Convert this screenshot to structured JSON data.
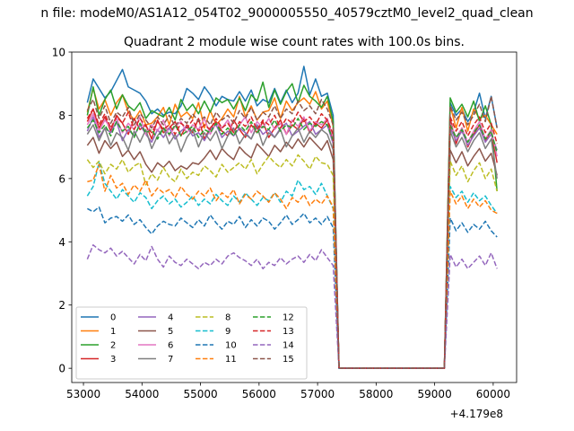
{
  "figure": {
    "suptitle": "n file: modeM0/AS1A12_054T02_9000005550_40579cztM0_level2_quad_clean",
    "title": "Quadrant 2 module wise count rates with 100.0s bins.",
    "x_offset_label": "+4.179e8"
  },
  "chart_data": {
    "type": "line",
    "title": "Quadrant 2 module wise count rates with 100.0s bins.",
    "xlabel": "",
    "ylabel": "",
    "x_offset": 417900000,
    "xlim": [
      52800,
      60400
    ],
    "ylim": [
      -0.45,
      10
    ],
    "xticks": [
      53000,
      54000,
      55000,
      56000,
      57000,
      58000,
      59000,
      60000
    ],
    "xtick_labels": [
      "53000",
      "54000",
      "55000",
      "56000",
      "57000",
      "58000",
      "59000",
      "60000"
    ],
    "yticks": [
      0,
      2,
      4,
      6,
      8,
      10
    ],
    "ytick_labels": [
      "0",
      "2",
      "4",
      "6",
      "8",
      "10"
    ],
    "grid": false,
    "legend_placement": "lower-left",
    "x": [
      53066,
      53166,
      53266,
      53366,
      53466,
      53566,
      53666,
      53766,
      53866,
      53966,
      54066,
      54166,
      54266,
      54366,
      54466,
      54566,
      54666,
      54766,
      54866,
      54966,
      55066,
      55166,
      55266,
      55366,
      55466,
      55566,
      55666,
      55766,
      55866,
      55966,
      56066,
      56166,
      56266,
      56366,
      56466,
      56566,
      56666,
      56766,
      56866,
      56966,
      57066,
      57166,
      57266,
      57366,
      59166,
      59266,
      59366,
      59466,
      59566,
      59666,
      59766,
      59866,
      59966,
      60066
    ],
    "series": [
      {
        "name": "0",
        "color": "#1f77b4",
        "dash": "solid",
        "values": [
          8.4,
          9.15,
          8.85,
          8.55,
          8.75,
          9.1,
          9.45,
          8.9,
          8.8,
          8.7,
          8.45,
          8.05,
          8.2,
          8.0,
          8.1,
          8.05,
          8.3,
          8.85,
          8.7,
          8.5,
          8.9,
          8.65,
          8.3,
          8.6,
          8.5,
          8.45,
          8.75,
          8.45,
          8.8,
          8.3,
          8.5,
          8.4,
          8.85,
          8.4,
          8.8,
          8.4,
          8.7,
          9.55,
          8.65,
          9.15,
          8.6,
          8.7,
          8.0,
          0.0,
          0.0,
          8.4,
          8.0,
          8.2,
          7.8,
          8.1,
          8.7,
          7.9,
          8.6,
          7.6
        ]
      },
      {
        "name": "1",
        "color": "#ff7f0e",
        "dash": "solid",
        "values": [
          8.1,
          8.85,
          8.2,
          8.5,
          8.0,
          8.4,
          8.65,
          8.1,
          7.85,
          8.15,
          7.7,
          7.75,
          7.95,
          8.25,
          7.7,
          8.35,
          7.95,
          8.1,
          7.9,
          8.4,
          7.6,
          8.15,
          7.7,
          7.9,
          8.2,
          7.95,
          8.6,
          7.95,
          8.3,
          7.85,
          8.1,
          8.15,
          8.55,
          7.9,
          8.45,
          8.15,
          8.4,
          8.55,
          8.35,
          8.75,
          8.2,
          8.45,
          7.65,
          0.0,
          0.0,
          8.3,
          7.6,
          8.25,
          7.5,
          8.2,
          7.9,
          8.0,
          7.7,
          7.4
        ]
      },
      {
        "name": "2",
        "color": "#2ca02c",
        "dash": "solid",
        "values": [
          8.0,
          8.9,
          8.0,
          8.5,
          8.8,
          8.2,
          8.65,
          8.3,
          8.15,
          8.4,
          7.9,
          8.15,
          8.05,
          7.95,
          8.25,
          7.85,
          8.5,
          8.15,
          8.35,
          8.05,
          8.45,
          8.1,
          8.55,
          8.4,
          8.5,
          8.2,
          8.55,
          8.15,
          8.65,
          8.45,
          9.05,
          8.25,
          8.8,
          8.35,
          8.75,
          9.0,
          8.4,
          8.95,
          8.6,
          8.45,
          8.25,
          8.6,
          7.8,
          0.0,
          0.0,
          8.55,
          8.1,
          8.35,
          7.95,
          8.45,
          7.8,
          8.3,
          7.7,
          5.6
        ]
      },
      {
        "name": "3",
        "color": "#d62728",
        "dash": "solid",
        "values": [
          7.8,
          8.2,
          7.6,
          7.95,
          7.5,
          8.0,
          7.75,
          7.4,
          7.9,
          7.55,
          7.7,
          7.25,
          7.85,
          7.45,
          7.6,
          7.8,
          7.35,
          7.7,
          7.45,
          7.9,
          7.25,
          7.6,
          7.8,
          7.5,
          7.35,
          7.85,
          7.55,
          7.3,
          7.7,
          7.45,
          7.8,
          7.3,
          7.6,
          7.85,
          7.4,
          7.7,
          7.55,
          7.9,
          7.45,
          7.75,
          7.6,
          7.85,
          7.2,
          0.0,
          0.0,
          7.9,
          7.1,
          7.6,
          7.0,
          7.4,
          7.7,
          7.2,
          7.5,
          6.5
        ]
      },
      {
        "name": "4",
        "color": "#9467bd",
        "dash": "solid",
        "values": [
          7.5,
          7.95,
          7.3,
          7.6,
          7.45,
          7.8,
          7.2,
          7.55,
          7.35,
          7.7,
          7.4,
          7.15,
          7.55,
          7.3,
          7.6,
          7.25,
          7.5,
          7.65,
          7.35,
          7.45,
          7.2,
          7.55,
          7.7,
          7.3,
          7.5,
          7.35,
          7.6,
          7.45,
          7.25,
          7.7,
          7.4,
          7.55,
          7.3,
          7.6,
          7.75,
          7.35,
          7.5,
          7.65,
          7.8,
          7.4,
          7.55,
          7.7,
          7.1,
          0.0,
          0.0,
          7.6,
          7.2,
          7.5,
          7.05,
          7.35,
          7.6,
          7.15,
          7.4,
          6.9
        ]
      },
      {
        "name": "5",
        "color": "#8c564b",
        "dash": "solid",
        "values": [
          7.05,
          7.3,
          6.8,
          7.2,
          6.95,
          7.15,
          6.7,
          6.9,
          6.6,
          6.85,
          6.45,
          6.2,
          6.5,
          6.35,
          6.55,
          6.25,
          6.4,
          6.3,
          6.5,
          6.45,
          6.65,
          6.9,
          6.6,
          6.95,
          6.75,
          6.6,
          7.0,
          6.8,
          6.65,
          7.1,
          6.9,
          6.7,
          7.05,
          6.85,
          7.15,
          6.95,
          7.25,
          7.0,
          7.3,
          7.1,
          6.9,
          7.2,
          6.6,
          0.0,
          0.0,
          6.9,
          6.5,
          6.85,
          6.4,
          6.7,
          6.95,
          6.55,
          6.8,
          6.1
        ]
      },
      {
        "name": "6",
        "color": "#e377c2",
        "dash": "solid",
        "values": [
          7.7,
          8.05,
          7.5,
          7.85,
          7.6,
          7.9,
          7.45,
          7.75,
          7.55,
          7.95,
          7.4,
          7.7,
          7.5,
          7.85,
          7.35,
          7.65,
          7.8,
          7.45,
          7.7,
          7.55,
          7.9,
          7.4,
          7.75,
          7.6,
          7.85,
          7.5,
          7.7,
          7.95,
          7.45,
          7.8,
          7.6,
          7.9,
          7.55,
          7.75,
          7.4,
          7.85,
          7.65,
          7.95,
          7.5,
          7.8,
          7.7,
          7.9,
          7.3,
          0.0,
          0.0,
          7.75,
          7.3,
          7.6,
          7.15,
          7.5,
          7.8,
          7.25,
          7.55,
          6.7
        ]
      },
      {
        "name": "7",
        "color": "#7f7f7f",
        "dash": "solid",
        "values": [
          7.4,
          7.7,
          7.2,
          7.6,
          7.05,
          7.45,
          7.3,
          6.9,
          7.5,
          7.15,
          7.55,
          6.95,
          7.35,
          7.6,
          7.1,
          7.4,
          6.85,
          7.3,
          7.55,
          7.0,
          7.45,
          7.2,
          7.5,
          6.95,
          7.35,
          7.6,
          7.1,
          7.4,
          7.25,
          7.65,
          7.05,
          7.45,
          7.3,
          7.55,
          7.0,
          7.35,
          7.6,
          7.15,
          7.5,
          7.3,
          7.55,
          7.4,
          6.9,
          0.0,
          0.0,
          7.5,
          7.0,
          7.3,
          6.85,
          7.2,
          7.45,
          6.95,
          7.25,
          6.0
        ]
      },
      {
        "name": "8",
        "color": "#bcbd22",
        "dash": "dashed",
        "values": [
          6.6,
          6.35,
          6.55,
          6.15,
          6.45,
          6.3,
          6.6,
          6.2,
          6.4,
          6.5,
          5.8,
          6.15,
          5.95,
          6.35,
          6.05,
          5.9,
          6.3,
          6.0,
          6.2,
          6.1,
          6.4,
          6.25,
          6.05,
          6.45,
          6.2,
          6.35,
          6.5,
          6.3,
          6.6,
          6.15,
          6.45,
          6.7,
          6.5,
          6.35,
          6.6,
          6.4,
          6.75,
          6.55,
          6.3,
          6.7,
          6.5,
          6.45,
          6.1,
          0.0,
          0.0,
          6.55,
          6.1,
          6.4,
          5.9,
          6.25,
          6.5,
          6.0,
          6.3,
          5.6
        ]
      },
      {
        "name": "9",
        "color": "#17becf",
        "dash": "dashed",
        "values": [
          5.45,
          5.75,
          6.5,
          5.85,
          5.6,
          5.35,
          5.65,
          5.45,
          5.25,
          5.55,
          5.4,
          5.05,
          5.3,
          5.45,
          5.2,
          5.35,
          5.1,
          5.25,
          5.45,
          5.15,
          5.35,
          5.2,
          5.5,
          5.3,
          5.15,
          5.45,
          5.25,
          5.55,
          5.35,
          5.15,
          5.4,
          5.3,
          5.55,
          5.25,
          5.6,
          5.45,
          5.95,
          5.65,
          5.75,
          5.5,
          5.85,
          5.45,
          5.05,
          0.0,
          0.0,
          5.75,
          5.4,
          5.6,
          5.25,
          5.55,
          5.3,
          5.45,
          5.15,
          4.9
        ]
      },
      {
        "name": "10",
        "color": "#1f77b4",
        "dash": "dashed",
        "values": [
          5.05,
          4.95,
          5.1,
          4.6,
          4.75,
          4.8,
          4.65,
          4.85,
          4.55,
          4.7,
          4.45,
          4.25,
          4.5,
          4.65,
          4.55,
          4.5,
          4.75,
          4.6,
          4.45,
          4.7,
          4.5,
          4.85,
          4.6,
          4.4,
          4.65,
          4.55,
          4.8,
          4.45,
          4.7,
          4.5,
          4.75,
          4.65,
          4.4,
          4.6,
          4.85,
          4.55,
          4.7,
          4.9,
          4.6,
          4.75,
          4.55,
          4.8,
          4.45,
          0.0,
          0.0,
          4.75,
          4.35,
          4.6,
          4.3,
          4.55,
          4.4,
          4.65,
          4.35,
          4.15
        ]
      },
      {
        "name": "11",
        "color": "#ff7f0e",
        "dash": "dashed",
        "values": [
          5.9,
          5.95,
          6.45,
          5.6,
          6.1,
          5.7,
          5.85,
          5.5,
          5.8,
          5.6,
          5.95,
          5.45,
          5.7,
          5.55,
          5.65,
          5.4,
          5.75,
          5.5,
          5.35,
          5.6,
          5.45,
          5.7,
          5.3,
          5.55,
          5.4,
          5.65,
          5.2,
          5.5,
          5.35,
          5.6,
          5.45,
          5.25,
          5.55,
          5.35,
          5.05,
          5.4,
          5.25,
          5.5,
          5.15,
          5.35,
          5.2,
          5.45,
          5.1,
          0.0,
          0.0,
          5.6,
          5.2,
          5.45,
          5.05,
          5.35,
          5.1,
          5.3,
          5.0,
          4.9
        ]
      },
      {
        "name": "12",
        "color": "#2ca02c",
        "dash": "dashed",
        "values": [
          7.6,
          7.85,
          7.45,
          7.7,
          7.35,
          7.8,
          7.5,
          7.65,
          7.3,
          7.75,
          7.45,
          7.55,
          7.25,
          7.6,
          7.4,
          7.7,
          7.35,
          7.5,
          7.65,
          7.3,
          7.55,
          7.45,
          7.75,
          7.4,
          7.6,
          7.35,
          7.7,
          7.5,
          7.8,
          7.45,
          7.65,
          7.55,
          7.85,
          7.5,
          7.7,
          7.6,
          7.9,
          7.55,
          7.75,
          7.65,
          7.8,
          7.7,
          7.2,
          0.0,
          0.0,
          7.7,
          7.3,
          7.55,
          7.15,
          7.45,
          7.7,
          7.25,
          7.5,
          6.8
        ]
      },
      {
        "name": "13",
        "color": "#d62728",
        "dash": "dashed",
        "values": [
          7.9,
          8.2,
          7.7,
          8.05,
          7.6,
          7.95,
          7.75,
          8.1,
          7.55,
          7.9,
          7.65,
          7.45,
          7.8,
          7.55,
          7.7,
          7.4,
          7.75,
          7.6,
          7.85,
          7.5,
          7.7,
          7.55,
          7.9,
          7.6,
          7.75,
          7.45,
          7.8,
          7.65,
          7.95,
          7.55,
          7.85,
          7.7,
          8.0,
          7.6,
          7.9,
          7.75,
          8.1,
          7.8,
          7.95,
          7.7,
          8.05,
          7.85,
          7.4,
          0.0,
          0.0,
          7.95,
          7.5,
          7.8,
          7.35,
          7.7,
          7.95,
          7.45,
          7.75,
          7.1
        ]
      },
      {
        "name": "14",
        "color": "#9467bd",
        "dash": "dashed",
        "values": [
          3.45,
          3.9,
          3.75,
          3.65,
          3.8,
          3.55,
          3.7,
          3.5,
          3.3,
          3.6,
          3.4,
          3.85,
          3.45,
          3.2,
          3.55,
          3.35,
          3.25,
          3.45,
          3.3,
          3.15,
          3.35,
          3.25,
          3.45,
          3.3,
          3.55,
          3.65,
          3.5,
          3.4,
          3.25,
          3.45,
          3.15,
          3.35,
          3.25,
          3.5,
          3.3,
          3.45,
          3.55,
          3.35,
          3.6,
          3.4,
          3.75,
          3.5,
          3.25,
          0.0,
          0.0,
          3.6,
          3.2,
          3.45,
          3.15,
          3.35,
          3.55,
          3.25,
          3.65,
          3.15
        ]
      },
      {
        "name": "15",
        "color": "#8c564b",
        "dash": "dashed",
        "values": [
          8.15,
          8.5,
          7.9,
          8.3,
          7.75,
          8.1,
          7.95,
          8.25,
          7.7,
          8.05,
          7.85,
          7.6,
          7.95,
          7.7,
          8.0,
          7.65,
          7.9,
          7.75,
          8.05,
          7.8,
          7.95,
          7.7,
          8.1,
          7.85,
          8.0,
          7.75,
          8.15,
          7.9,
          8.25,
          7.85,
          8.1,
          7.95,
          8.3,
          7.9,
          8.2,
          8.05,
          8.45,
          8.15,
          8.3,
          8.05,
          8.5,
          8.2,
          7.7,
          0.0,
          0.0,
          8.3,
          7.85,
          8.1,
          7.7,
          8.0,
          8.35,
          7.8,
          8.6,
          7.6
        ]
      }
    ]
  }
}
